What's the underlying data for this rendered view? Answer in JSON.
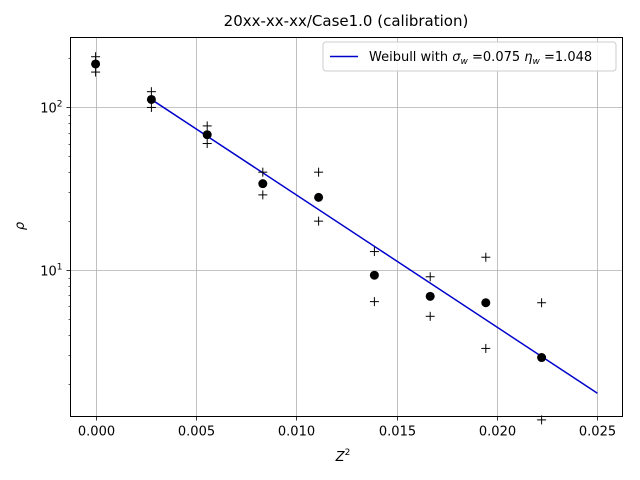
{
  "chart_data": {
    "type": "scatter",
    "title": "20xx-xx-xx/Case1.0 (calibration)",
    "xlabel": "Z",
    "xlabel_sup": "2",
    "ylabel": "ρ",
    "xlim": [
      -0.00125,
      0.02625
    ],
    "ylim_log10": [
      0.1,
      2.43
    ],
    "y_scale": "log",
    "x_ticks": [
      0.0,
      0.005,
      0.01,
      0.015,
      0.02,
      0.025
    ],
    "x_tick_labels": [
      "0.000",
      "0.005",
      "0.010",
      "0.015",
      "0.020",
      "0.025"
    ],
    "y_ticks": [
      10,
      100
    ],
    "y_tick_base": "10",
    "y_tick_exps": [
      "1",
      "2"
    ],
    "grid": true,
    "legend_position": "top-right",
    "legend": {
      "prefix": "Weibull with ",
      "sigma_sym": "σ",
      "sigma_sub": "w",
      "sigma_val": " =0.075 ",
      "eta_sym": "η",
      "eta_sub": "w",
      "eta_val": " =1.048"
    },
    "series": [
      {
        "kind": "points",
        "marker": "circle",
        "color": "#000000",
        "x": [
          0.0,
          0.00278,
          0.00556,
          0.00833,
          0.01111,
          0.01389,
          0.01667,
          0.01944,
          0.02222
        ],
        "y": [
          185,
          112,
          68,
          34,
          28,
          9.3,
          6.9,
          6.3,
          2.9
        ]
      },
      {
        "kind": "upper",
        "marker": "plus",
        "color": "#000000",
        "x": [
          0.0,
          0.00278,
          0.00556,
          0.00833,
          0.01111,
          0.01389,
          0.01667,
          0.01944,
          0.02222
        ],
        "y": [
          205,
          125,
          77,
          40,
          40,
          13,
          9.1,
          12,
          6.3
        ]
      },
      {
        "kind": "lower",
        "marker": "plus",
        "color": "#000000",
        "x": [
          0.0,
          0.00278,
          0.00556,
          0.00833,
          0.01111,
          0.01389,
          0.01667,
          0.01944,
          0.02222
        ],
        "y": [
          165,
          100,
          60,
          29,
          20,
          6.4,
          5.2,
          3.3,
          1.2
        ]
      },
      {
        "kind": "fit",
        "marker": "line",
        "color": "#0000cc",
        "x": [
          0.00278,
          0.025
        ],
        "y": [
          112,
          1.75
        ]
      }
    ]
  }
}
